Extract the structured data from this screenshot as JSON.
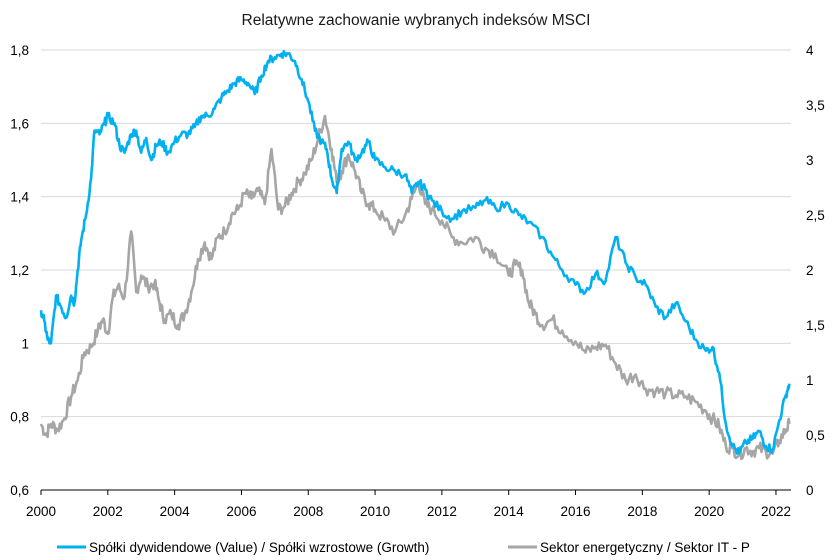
{
  "chart_data": {
    "type": "line",
    "title": "Relatywne zachowanie wybranych indeksów MSCI",
    "xlabel": "",
    "ylabel_left": "",
    "ylabel_right": "",
    "x_ticks": [
      "2000",
      "2002",
      "2004",
      "2006",
      "2008",
      "2010",
      "2012",
      "2014",
      "2016",
      "2018",
      "2020",
      "2022"
    ],
    "x_range": [
      2000,
      2022.45
    ],
    "y_left": {
      "range": [
        0.6,
        1.8
      ],
      "ticks": [
        "0,6",
        "0,8",
        "1",
        "1,2",
        "1,4",
        "1,6",
        "1,8"
      ],
      "tick_values": [
        0.6,
        0.8,
        1.0,
        1.2,
        1.4,
        1.6,
        1.8
      ]
    },
    "y_right": {
      "range": [
        0,
        4
      ],
      "ticks": [
        "0",
        "0,5",
        "1",
        "1,5",
        "2",
        "2,5",
        "3",
        "3,5",
        "4"
      ],
      "tick_values": [
        0,
        0.5,
        1,
        1.5,
        2,
        2.5,
        3,
        3.5,
        4
      ]
    },
    "grid": true,
    "legend_position": "bottom",
    "series": [
      {
        "name": "Spółki dywidendowe (Value) / Spółki wzrostowe (Growth)",
        "axis": "left",
        "color": "#00b0f0",
        "x": [
          2000.0,
          2000.1,
          2000.2,
          2000.3,
          2000.45,
          2000.6,
          2000.75,
          2000.9,
          2001.0,
          2001.1,
          2001.2,
          2001.35,
          2001.5,
          2001.6,
          2001.75,
          2001.9,
          2002.0,
          2002.2,
          2002.35,
          2002.5,
          2002.7,
          2002.85,
          2003.0,
          2003.15,
          2003.3,
          2003.45,
          2003.6,
          2003.8,
          2004.0,
          2004.2,
          2004.4,
          2004.6,
          2004.8,
          2005.0,
          2005.2,
          2005.4,
          2005.6,
          2005.8,
          2006.0,
          2006.2,
          2006.4,
          2006.6,
          2006.8,
          2007.0,
          2007.2,
          2007.4,
          2007.6,
          2007.8,
          2008.0,
          2008.2,
          2008.4,
          2008.55,
          2008.7,
          2008.85,
          2009.0,
          2009.2,
          2009.4,
          2009.6,
          2009.8,
          2010.0,
          2010.3,
          2010.6,
          2010.9,
          2011.1,
          2011.3,
          2011.5,
          2011.7,
          2012.0,
          2012.3,
          2012.6,
          2013.0,
          2013.3,
          2013.6,
          2014.0,
          2014.3,
          2014.6,
          2015.0,
          2015.3,
          2015.6,
          2016.0,
          2016.3,
          2016.6,
          2016.9,
          2017.2,
          2017.5,
          2017.8,
          2018.1,
          2018.4,
          2018.7,
          2019.0,
          2019.3,
          2019.6,
          2019.9,
          2020.1,
          2020.3,
          2020.5,
          2020.7,
          2020.9,
          2021.1,
          2021.3,
          2021.5,
          2021.7,
          2021.9,
          2022.1,
          2022.3,
          2022.4
        ],
        "values": [
          1.09,
          1.06,
          1.01,
          1.0,
          1.13,
          1.1,
          1.07,
          1.13,
          1.11,
          1.2,
          1.28,
          1.35,
          1.45,
          1.58,
          1.57,
          1.6,
          1.62,
          1.6,
          1.54,
          1.52,
          1.57,
          1.58,
          1.52,
          1.56,
          1.5,
          1.54,
          1.55,
          1.52,
          1.55,
          1.57,
          1.57,
          1.59,
          1.62,
          1.62,
          1.64,
          1.67,
          1.69,
          1.71,
          1.72,
          1.71,
          1.68,
          1.73,
          1.77,
          1.78,
          1.79,
          1.79,
          1.77,
          1.72,
          1.66,
          1.58,
          1.55,
          1.53,
          1.45,
          1.41,
          1.53,
          1.55,
          1.5,
          1.52,
          1.55,
          1.5,
          1.48,
          1.47,
          1.46,
          1.41,
          1.44,
          1.42,
          1.39,
          1.36,
          1.34,
          1.36,
          1.37,
          1.39,
          1.37,
          1.38,
          1.35,
          1.33,
          1.29,
          1.24,
          1.2,
          1.16,
          1.14,
          1.19,
          1.17,
          1.29,
          1.22,
          1.18,
          1.16,
          1.1,
          1.07,
          1.11,
          1.06,
          1.01,
          0.98,
          0.99,
          0.92,
          0.78,
          0.72,
          0.7,
          0.73,
          0.74,
          0.76,
          0.72,
          0.71,
          0.79,
          0.86,
          0.89
        ]
      },
      {
        "name": "Sektor energetyczny / Sektor IT - P",
        "axis": "right",
        "color": "#a6a6a6",
        "x": [
          2000.0,
          2000.15,
          2000.3,
          2000.5,
          2000.7,
          2000.9,
          2001.1,
          2001.3,
          2001.5,
          2001.7,
          2001.85,
          2002.0,
          2002.15,
          2002.3,
          2002.5,
          2002.7,
          2002.85,
          2003.0,
          2003.2,
          2003.4,
          2003.55,
          2003.7,
          2003.9,
          2004.1,
          2004.3,
          2004.5,
          2004.7,
          2004.9,
          2005.1,
          2005.3,
          2005.5,
          2005.7,
          2005.9,
          2006.1,
          2006.3,
          2006.5,
          2006.7,
          2006.9,
          2007.1,
          2007.3,
          2007.5,
          2007.7,
          2007.9,
          2008.1,
          2008.3,
          2008.5,
          2008.7,
          2008.85,
          2009.0,
          2009.2,
          2009.4,
          2009.6,
          2009.8,
          2010.0,
          2010.3,
          2010.6,
          2010.9,
          2011.1,
          2011.3,
          2011.5,
          2011.7,
          2012.0,
          2012.3,
          2012.6,
          2013.0,
          2013.3,
          2013.6,
          2014.0,
          2014.2,
          2014.4,
          2014.6,
          2014.8,
          2015.0,
          2015.3,
          2015.6,
          2016.0,
          2016.3,
          2016.6,
          2016.9,
          2017.2,
          2017.5,
          2017.8,
          2018.1,
          2018.4,
          2018.7,
          2019.0,
          2019.3,
          2019.6,
          2019.9,
          2020.1,
          2020.3,
          2020.5,
          2020.7,
          2020.9,
          2021.1,
          2021.3,
          2021.5,
          2021.7,
          2021.9,
          2022.1,
          2022.3,
          2022.4
        ],
        "values": [
          0.6,
          0.5,
          0.6,
          0.55,
          0.65,
          0.85,
          1.0,
          1.25,
          1.3,
          1.45,
          1.55,
          1.42,
          1.75,
          1.85,
          1.75,
          2.35,
          1.8,
          1.95,
          1.85,
          1.88,
          1.7,
          1.55,
          1.6,
          1.5,
          1.6,
          1.8,
          2.1,
          2.25,
          2.1,
          2.3,
          2.35,
          2.5,
          2.55,
          2.7,
          2.65,
          2.72,
          2.6,
          3.1,
          2.55,
          2.58,
          2.7,
          2.8,
          2.88,
          3.0,
          3.2,
          3.4,
          3.1,
          2.8,
          2.9,
          3.05,
          2.9,
          2.7,
          2.6,
          2.55,
          2.45,
          2.35,
          2.5,
          2.65,
          2.8,
          2.6,
          2.55,
          2.45,
          2.3,
          2.25,
          2.3,
          2.2,
          2.15,
          1.95,
          2.05,
          2.0,
          1.7,
          1.6,
          1.5,
          1.55,
          1.45,
          1.35,
          1.25,
          1.3,
          1.32,
          1.15,
          1.0,
          1.05,
          0.92,
          0.9,
          0.88,
          0.86,
          0.85,
          0.8,
          0.72,
          0.65,
          0.58,
          0.4,
          0.38,
          0.32,
          0.38,
          0.35,
          0.38,
          0.35,
          0.33,
          0.45,
          0.55,
          0.6
        ]
      }
    ]
  }
}
